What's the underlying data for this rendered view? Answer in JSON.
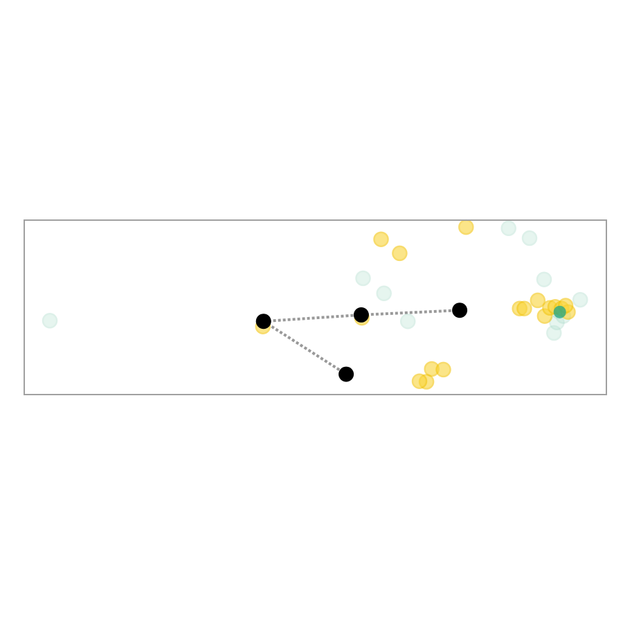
{
  "chart_data": {
    "type": "scatter",
    "title": "",
    "xlabel": "",
    "ylabel": "",
    "axes_visible": false,
    "grid": false,
    "frame_color": "#a0a0a0",
    "xlim": [
      0,
      100
    ],
    "ylim": [
      0,
      30
    ],
    "series": [
      {
        "color": "#b9e3d4",
        "stroke": "#9fd6c3",
        "opacity": 0.35,
        "points": [
          [
            4.4,
            12.7
          ],
          [
            58.2,
            20.0
          ],
          [
            61.8,
            17.4
          ],
          [
            65.9,
            12.6
          ],
          [
            83.2,
            28.6
          ],
          [
            86.8,
            26.9
          ],
          [
            89.3,
            19.8
          ],
          [
            91.0,
            10.6
          ],
          [
            91.5,
            12.4
          ],
          [
            95.5,
            16.3
          ],
          [
            91.8,
            14.3
          ],
          [
            92.6,
            13.5
          ]
        ]
      },
      {
        "color": "#fad53a",
        "stroke": "#f2c40b",
        "opacity": 0.6,
        "points": [
          [
            61.3,
            26.7
          ],
          [
            64.5,
            24.3
          ],
          [
            75.9,
            28.8
          ],
          [
            41.0,
            11.7
          ],
          [
            58.0,
            13.2
          ],
          [
            70.0,
            4.4
          ],
          [
            69.1,
            2.2
          ],
          [
            72.0,
            4.3
          ],
          [
            67.9,
            2.3
          ],
          [
            85.1,
            14.8
          ],
          [
            85.9,
            14.8
          ],
          [
            88.2,
            16.2
          ],
          [
            89.4,
            13.5
          ],
          [
            90.3,
            14.9
          ],
          [
            91.2,
            15.1
          ],
          [
            92.3,
            14.8
          ],
          [
            93.4,
            14.2
          ],
          [
            93.0,
            15.3
          ]
        ]
      }
    ],
    "highlight": {
      "color": "#2aa882",
      "opacity": 0.8,
      "points": [
        [
          92.0,
          14.2
        ]
      ]
    },
    "centers": {
      "color": "#000000",
      "points": [
        [
          41.1,
          12.6
        ],
        [
          57.9,
          13.7
        ],
        [
          74.8,
          14.5
        ],
        [
          55.3,
          3.5
        ]
      ]
    },
    "links": {
      "color": "#999999",
      "dash": "dotted",
      "pairs": [
        [
          0,
          1
        ],
        [
          1,
          2
        ],
        [
          0,
          3
        ]
      ]
    }
  }
}
